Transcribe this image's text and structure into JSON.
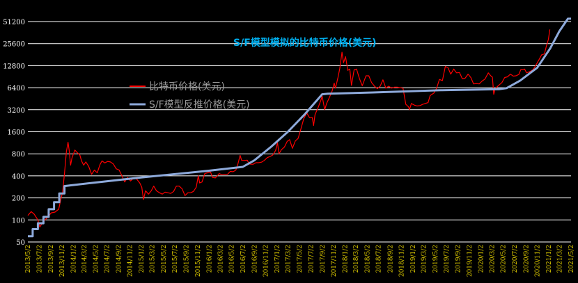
{
  "chart_data": {
    "type": "line",
    "title": "S/F模型模拟的比特币价格(美元)",
    "xlabel": "",
    "ylabel": "",
    "y_scale": "log2",
    "ylim": [
      50,
      51200
    ],
    "y_ticks": [
      "51200",
      "25600",
      "12800",
      "6400",
      "3200",
      "1600",
      "800",
      "400",
      "200",
      "100",
      "50"
    ],
    "y_tick_values": [
      51200,
      25600,
      12800,
      6400,
      3200,
      1600,
      800,
      400,
      200,
      100,
      50
    ],
    "x_start": "2013-05-02",
    "x_end": "2021-05-02",
    "x_ticks": [
      "2013/5/2",
      "2013/7/2",
      "2013/9/2",
      "2013/11/2",
      "2014/1/2",
      "2014/3/2",
      "2014/5/2",
      "2014/7/2",
      "2014/9/2",
      "2014/11/2",
      "2015/1/2",
      "2015/3/2",
      "2015/5/2",
      "2015/7/2",
      "2015/9/2",
      "2015/11/2",
      "2016/1/2",
      "2016/3/2",
      "2016/5/2",
      "2016/7/2",
      "2016/9/2",
      "2016/11/2",
      "2017/1/2",
      "2017/3/2",
      "2017/5/2",
      "2017/7/2",
      "2017/9/2",
      "2017/11/2",
      "2018/1/2",
      "2018/3/2",
      "2018/5/2",
      "2018/7/2",
      "2018/9/2",
      "2018/11/2",
      "2019/1/2",
      "2019/3/2",
      "2019/5/2",
      "2019/7/2",
      "2019/9/2",
      "2019/11/2",
      "2020/1/2",
      "2020/3/2",
      "2020/5/2",
      "2020/7/2",
      "2020/9/2",
      "2020/11/2",
      "2021/1/2",
      "2021/3/2",
      "2021/5/2"
    ],
    "grid": true,
    "legend_position": "upper-left",
    "series": [
      {
        "name": "比特币价格(美元)",
        "color": "#ff0000",
        "points": [
          [
            "2013-05-02",
            115
          ],
          [
            "2013-05-20",
            130
          ],
          [
            "2013-06-05",
            120
          ],
          [
            "2013-06-25",
            100
          ],
          [
            "2013-07-05",
            80
          ],
          [
            "2013-07-25",
            95
          ],
          [
            "2013-08-15",
            108
          ],
          [
            "2013-09-05",
            125
          ],
          [
            "2013-09-25",
            128
          ],
          [
            "2013-10-15",
            140
          ],
          [
            "2013-10-25",
            185
          ],
          [
            "2013-11-05",
            240
          ],
          [
            "2013-11-15",
            430
          ],
          [
            "2013-11-25",
            850
          ],
          [
            "2013-12-04",
            1150
          ],
          [
            "2013-12-10",
            900
          ],
          [
            "2013-12-18",
            560
          ],
          [
            "2013-12-25",
            700
          ],
          [
            "2014-01-10",
            900
          ],
          [
            "2014-01-25",
            820
          ],
          [
            "2014-02-05",
            780
          ],
          [
            "2014-02-15",
            640
          ],
          [
            "2014-02-26",
            560
          ],
          [
            "2014-03-10",
            620
          ],
          [
            "2014-03-25",
            540
          ],
          [
            "2014-04-10",
            420
          ],
          [
            "2014-04-25",
            480
          ],
          [
            "2014-05-10",
            440
          ],
          [
            "2014-05-25",
            570
          ],
          [
            "2014-06-05",
            640
          ],
          [
            "2014-06-20",
            600
          ],
          [
            "2014-07-05",
            630
          ],
          [
            "2014-07-20",
            620
          ],
          [
            "2014-08-05",
            580
          ],
          [
            "2014-08-20",
            500
          ],
          [
            "2014-09-05",
            480
          ],
          [
            "2014-09-20",
            400
          ],
          [
            "2014-10-05",
            330
          ],
          [
            "2014-10-20",
            380
          ],
          [
            "2014-11-05",
            340
          ],
          [
            "2014-11-20",
            370
          ],
          [
            "2014-12-05",
            370
          ],
          [
            "2014-12-25",
            320
          ],
          [
            "2015-01-05",
            280
          ],
          [
            "2015-01-14",
            190
          ],
          [
            "2015-01-25",
            250
          ],
          [
            "2015-02-10",
            225
          ],
          [
            "2015-02-25",
            250
          ],
          [
            "2015-03-10",
            290
          ],
          [
            "2015-03-25",
            250
          ],
          [
            "2015-04-10",
            235
          ],
          [
            "2015-04-25",
            225
          ],
          [
            "2015-05-10",
            240
          ],
          [
            "2015-05-25",
            235
          ],
          [
            "2015-06-10",
            230
          ],
          [
            "2015-06-25",
            245
          ],
          [
            "2015-07-10",
            290
          ],
          [
            "2015-07-25",
            290
          ],
          [
            "2015-08-10",
            265
          ],
          [
            "2015-08-25",
            215
          ],
          [
            "2015-09-10",
            235
          ],
          [
            "2015-09-25",
            235
          ],
          [
            "2015-10-10",
            245
          ],
          [
            "2015-10-25",
            280
          ],
          [
            "2015-11-05",
            400
          ],
          [
            "2015-11-12",
            320
          ],
          [
            "2015-11-25",
            330
          ],
          [
            "2015-12-10",
            430
          ],
          [
            "2015-12-25",
            440
          ],
          [
            "2016-01-10",
            450
          ],
          [
            "2016-01-20",
            380
          ],
          [
            "2016-02-05",
            375
          ],
          [
            "2016-02-25",
            430
          ],
          [
            "2016-03-10",
            415
          ],
          [
            "2016-03-25",
            420
          ],
          [
            "2016-04-10",
            420
          ],
          [
            "2016-04-25",
            460
          ],
          [
            "2016-05-10",
            455
          ],
          [
            "2016-05-25",
            480
          ],
          [
            "2016-06-05",
            580
          ],
          [
            "2016-06-17",
            760
          ],
          [
            "2016-06-25",
            650
          ],
          [
            "2016-07-10",
            650
          ],
          [
            "2016-07-25",
            655
          ],
          [
            "2016-08-05",
            580
          ],
          [
            "2016-08-25",
            575
          ],
          [
            "2016-09-10",
            605
          ],
          [
            "2016-09-25",
            605
          ],
          [
            "2016-10-10",
            615
          ],
          [
            "2016-10-25",
            650
          ],
          [
            "2016-11-10",
            710
          ],
          [
            "2016-11-25",
            735
          ],
          [
            "2016-12-10",
            770
          ],
          [
            "2016-12-25",
            890
          ],
          [
            "2017-01-04",
            1130
          ],
          [
            "2017-01-12",
            800
          ],
          [
            "2017-01-25",
            910
          ],
          [
            "2017-02-10",
            990
          ],
          [
            "2017-02-25",
            1180
          ],
          [
            "2017-03-10",
            1250
          ],
          [
            "2017-03-25",
            950
          ],
          [
            "2017-04-10",
            1200
          ],
          [
            "2017-04-25",
            1300
          ],
          [
            "2017-05-10",
            1750
          ],
          [
            "2017-05-25",
            2400
          ],
          [
            "2017-06-10",
            2900
          ],
          [
            "2017-06-25",
            2500
          ],
          [
            "2017-07-10",
            2500
          ],
          [
            "2017-07-17",
            1950
          ],
          [
            "2017-07-25",
            2750
          ],
          [
            "2017-08-10",
            3400
          ],
          [
            "2017-08-25",
            4300
          ],
          [
            "2017-09-01",
            4900
          ],
          [
            "2017-09-15",
            3200
          ],
          [
            "2017-09-25",
            3900
          ],
          [
            "2017-10-10",
            4700
          ],
          [
            "2017-10-25",
            5800
          ],
          [
            "2017-11-05",
            7400
          ],
          [
            "2017-11-12",
            6300
          ],
          [
            "2017-11-25",
            8800
          ],
          [
            "2017-12-05",
            11700
          ],
          [
            "2017-12-17",
            19500
          ],
          [
            "2017-12-25",
            14000
          ],
          [
            "2018-01-05",
            17000
          ],
          [
            "2018-01-17",
            11000
          ],
          [
            "2018-01-28",
            11500
          ],
          [
            "2018-02-06",
            6900
          ],
          [
            "2018-02-20",
            11200
          ],
          [
            "2018-03-05",
            11500
          ],
          [
            "2018-03-20",
            8600
          ],
          [
            "2018-04-05",
            6800
          ],
          [
            "2018-04-25",
            9300
          ],
          [
            "2018-05-10",
            9300
          ],
          [
            "2018-05-25",
            7500
          ],
          [
            "2018-06-10",
            6700
          ],
          [
            "2018-06-25",
            6200
          ],
          [
            "2018-07-10",
            6700
          ],
          [
            "2018-07-25",
            8200
          ],
          [
            "2018-08-10",
            6300
          ],
          [
            "2018-08-25",
            6700
          ],
          [
            "2018-09-10",
            6300
          ],
          [
            "2018-09-25",
            6500
          ],
          [
            "2018-10-10",
            6500
          ],
          [
            "2018-10-25",
            6400
          ],
          [
            "2018-11-10",
            6300
          ],
          [
            "2018-11-20",
            4500
          ],
          [
            "2018-11-25",
            3800
          ],
          [
            "2018-12-10",
            3500
          ],
          [
            "2018-12-15",
            3200
          ],
          [
            "2018-12-25",
            3900
          ],
          [
            "2019-01-10",
            3700
          ],
          [
            "2019-01-25",
            3600
          ],
          [
            "2019-02-10",
            3650
          ],
          [
            "2019-02-25",
            3800
          ],
          [
            "2019-03-10",
            3900
          ],
          [
            "2019-03-25",
            4000
          ],
          [
            "2019-04-05",
            5000
          ],
          [
            "2019-04-25",
            5400
          ],
          [
            "2019-05-10",
            6300
          ],
          [
            "2019-05-25",
            8300
          ],
          [
            "2019-06-10",
            8000
          ],
          [
            "2019-06-26",
            12500
          ],
          [
            "2019-07-10",
            12000
          ],
          [
            "2019-07-25",
            9800
          ],
          [
            "2019-08-10",
            11500
          ],
          [
            "2019-08-25",
            10200
          ],
          [
            "2019-09-10",
            10300
          ],
          [
            "2019-09-25",
            8500
          ],
          [
            "2019-10-10",
            8600
          ],
          [
            "2019-10-26",
            9800
          ],
          [
            "2019-11-10",
            8800
          ],
          [
            "2019-11-25",
            7200
          ],
          [
            "2019-12-10",
            7300
          ],
          [
            "2019-12-25",
            7200
          ],
          [
            "2020-01-10",
            7900
          ],
          [
            "2020-01-25",
            8400
          ],
          [
            "2020-02-12",
            10200
          ],
          [
            "2020-02-25",
            9300
          ],
          [
            "2020-03-05",
            8900
          ],
          [
            "2020-03-12",
            5200
          ],
          [
            "2020-03-20",
            6200
          ],
          [
            "2020-04-05",
            6800
          ],
          [
            "2020-04-25",
            7500
          ],
          [
            "2020-05-10",
            8800
          ],
          [
            "2020-05-25",
            9000
          ],
          [
            "2020-06-10",
            9800
          ],
          [
            "2020-06-25",
            9200
          ],
          [
            "2020-07-10",
            9300
          ],
          [
            "2020-07-25",
            9700
          ],
          [
            "2020-08-05",
            11300
          ],
          [
            "2020-08-25",
            11500
          ],
          [
            "2020-09-05",
            10200
          ],
          [
            "2020-09-25",
            10700
          ],
          [
            "2020-10-10",
            11300
          ],
          [
            "2020-10-25",
            13000
          ],
          [
            "2020-11-10",
            15300
          ],
          [
            "2020-11-25",
            18000
          ],
          [
            "2020-12-10",
            18500
          ],
          [
            "2020-12-20",
            23500
          ],
          [
            "2020-12-31",
            29000
          ],
          [
            "2021-01-08",
            40000
          ]
        ]
      },
      {
        "name": "S/F模型反推价格(美元)",
        "color": "#8eaadb",
        "points": [
          [
            "2013-05-02",
            60
          ],
          [
            "2013-05-28",
            60
          ],
          [
            "2013-05-28",
            75
          ],
          [
            "2013-06-25",
            75
          ],
          [
            "2013-06-25",
            90
          ],
          [
            "2013-07-25",
            90
          ],
          [
            "2013-07-25",
            110
          ],
          [
            "2013-08-22",
            110
          ],
          [
            "2013-08-22",
            140
          ],
          [
            "2013-09-20",
            140
          ],
          [
            "2013-09-20",
            175
          ],
          [
            "2013-10-18",
            175
          ],
          [
            "2013-10-18",
            230
          ],
          [
            "2013-11-15",
            230
          ],
          [
            "2013-11-15",
            290
          ],
          [
            "2014-01-01",
            300
          ],
          [
            "2015-01-01",
            380
          ],
          [
            "2016-01-01",
            470
          ],
          [
            "2016-07-01",
            530
          ],
          [
            "2016-09-01",
            650
          ],
          [
            "2016-12-01",
            1000
          ],
          [
            "2017-03-01",
            1600
          ],
          [
            "2017-06-01",
            2800
          ],
          [
            "2017-09-01",
            5200
          ],
          [
            "2017-10-01",
            5300
          ],
          [
            "2018-06-01",
            5500
          ],
          [
            "2019-06-01",
            5900
          ],
          [
            "2020-04-10",
            6100
          ],
          [
            "2020-05-20",
            6300
          ],
          [
            "2020-08-01",
            8000
          ],
          [
            "2020-11-01",
            12000
          ],
          [
            "2021-01-10",
            22000
          ],
          [
            "2021-03-01",
            38000
          ],
          [
            "2021-04-15",
            56000
          ],
          [
            "2021-05-02",
            56000
          ]
        ]
      }
    ]
  }
}
